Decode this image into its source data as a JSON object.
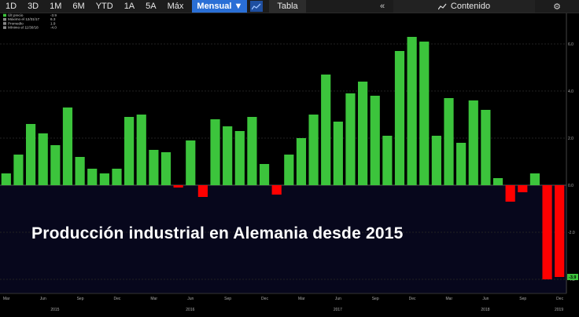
{
  "toolbar": {
    "ranges": [
      "1D",
      "3D",
      "1M",
      "6M",
      "YTD",
      "1A",
      "5A",
      "Máx"
    ],
    "period": "Mensual ▼",
    "chart_icon": "line-chart-icon",
    "table_label": "Tabla",
    "collapse_icon": "double-chevron-left-icon",
    "content_label": "Contenido",
    "content_icon": "line-chart-icon",
    "settings_icon": "gear-icon"
  },
  "legend": [
    {
      "label": "Últ precio",
      "value": "-3.9",
      "color": "#3cc43c"
    },
    {
      "label": "Máximo el 12/31/17",
      "value": "6.3",
      "color": "#888888"
    },
    {
      "label": "Promedio",
      "value": "1.9",
      "color": "#888888"
    },
    {
      "label": "Mínimo el 11/30/18",
      "value": "-4.0",
      "color": "#888888"
    }
  ],
  "overlay_title": "Producción industrial en Alemania desde 2015",
  "last_value_label": "-3.9",
  "colors": {
    "positive": "#3cc43c",
    "negative": "#ff0000",
    "background": "#000000",
    "toolbar": "#1c1c1c",
    "accent": "#2a6fd6"
  },
  "chart_data": {
    "type": "bar",
    "categories": [
      "Mar 2015",
      "Apr 2015",
      "May 2015",
      "Jun 2015",
      "Jul 2015",
      "Aug 2015",
      "Sep 2015",
      "Oct 2015",
      "Nov 2015",
      "Dec 2015",
      "Jan 2016",
      "Feb 2016",
      "Mar 2016",
      "Apr 2016",
      "May 2016",
      "Jun 2016",
      "Jul 2016",
      "Aug 2016",
      "Sep 2016",
      "Oct 2016",
      "Nov 2016",
      "Dec 2016",
      "Jan 2017",
      "Feb 2017",
      "Mar 2017",
      "Apr 2017",
      "May 2017",
      "Jun 2017",
      "Jul 2017",
      "Aug 2017",
      "Sep 2017",
      "Oct 2017",
      "Nov 2017",
      "Dec 2017",
      "Jan 2018",
      "Feb 2018",
      "Mar 2018",
      "Apr 2018",
      "May 2018",
      "Jun 2018",
      "Jul 2018",
      "Aug 2018",
      "Sep 2018",
      "Oct 2018",
      "Nov 2018",
      "Dec 2018"
    ],
    "values": [
      0.5,
      1.3,
      2.6,
      2.2,
      1.7,
      3.3,
      1.2,
      0.7,
      0.5,
      0.7,
      2.9,
      3.0,
      1.5,
      1.4,
      -0.1,
      1.9,
      -0.5,
      2.8,
      2.5,
      2.3,
      2.9,
      0.9,
      -0.4,
      1.3,
      2.0,
      3.0,
      4.7,
      2.7,
      3.9,
      4.4,
      3.8,
      2.1,
      5.7,
      6.3,
      6.1,
      2.1,
      3.7,
      1.8,
      3.6,
      3.2,
      0.3,
      -0.7,
      -0.3,
      0.5,
      -4.0,
      -3.9
    ],
    "y_ticks": [
      "6.0",
      "4.0",
      "2.0",
      "0.0",
      "-2.0",
      "-4.0"
    ],
    "ylim": [
      -4.0,
      6.0
    ],
    "x_tick_labels": [
      {
        "label": "Mar",
        "index": 0
      },
      {
        "label": "Jun",
        "index": 3
      },
      {
        "label": "Sep",
        "index": 6
      },
      {
        "label": "Dec",
        "index": 9
      },
      {
        "label": "Mar",
        "index": 12
      },
      {
        "label": "Jun",
        "index": 15
      },
      {
        "label": "Sep",
        "index": 18
      },
      {
        "label": "Dec",
        "index": 21
      },
      {
        "label": "Mar",
        "index": 24
      },
      {
        "label": "Jun",
        "index": 27
      },
      {
        "label": "Sep",
        "index": 30
      },
      {
        "label": "Dec",
        "index": 33
      },
      {
        "label": "Mar",
        "index": 36
      },
      {
        "label": "Jun",
        "index": 39
      },
      {
        "label": "Sep",
        "index": 42
      },
      {
        "label": "Dec",
        "index": 45
      }
    ],
    "x_year_labels": [
      {
        "label": "2015",
        "index": 4
      },
      {
        "label": "2016",
        "index": 15
      },
      {
        "label": "2017",
        "index": 27
      },
      {
        "label": "2018",
        "index": 39
      },
      {
        "label": "2019",
        "index": 46
      }
    ],
    "grid": true,
    "legend_position": "top-left"
  }
}
